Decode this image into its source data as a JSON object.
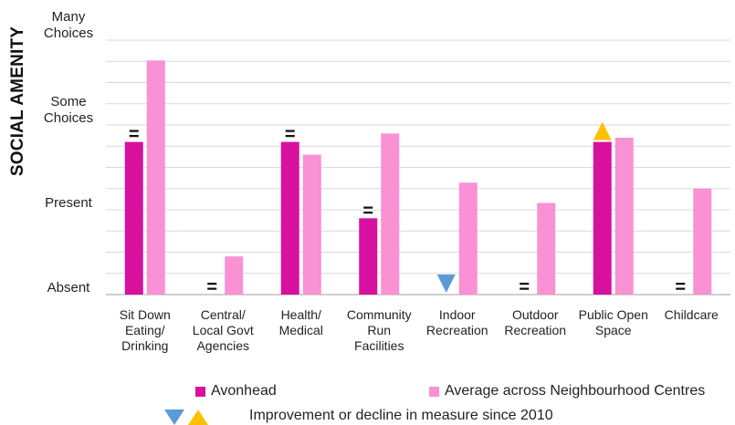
{
  "chart_data": {
    "type": "bar",
    "ylabel": "SOCIAL AMENITY",
    "y_levels": [
      {
        "label": "Absent",
        "value": 0
      },
      {
        "label": "Present",
        "value": 1
      },
      {
        "label": "Some\nChoices",
        "value": 2
      },
      {
        "label": "Many\nChoices",
        "value": 3
      }
    ],
    "ylim": [
      0,
      3
    ],
    "grid": true,
    "categories": [
      "Sit Down\nEating/\nDrinking",
      "Central/\nLocal Govt\nAgencies",
      "Health/\nMedical",
      "Community\nRun\nFacilities",
      "Indoor\nRecreation",
      "Outdoor\nRecreation",
      "Public Open\nSpace",
      "Childcare"
    ],
    "series": [
      {
        "name": "Avonhead",
        "color": "#d7119e",
        "values": [
          1.8,
          0,
          1.8,
          0.9,
          0,
          0,
          1.8,
          0
        ]
      },
      {
        "name": "Average across Neighbourhood Centres",
        "color": "#f991d4",
        "values": [
          2.76,
          0.45,
          1.65,
          1.9,
          1.32,
          1.08,
          1.85,
          1.25
        ]
      }
    ],
    "change_markers": [
      {
        "category": "Sit Down\nEating/\nDrinking",
        "marker": "="
      },
      {
        "category": "Central/\nLocal Govt\nAgencies",
        "marker": "="
      },
      {
        "category": "Health/\nMedical",
        "marker": "="
      },
      {
        "category": "Community\nRun\nFacilities",
        "marker": "="
      },
      {
        "category": "Indoor\nRecreation",
        "marker": "decline"
      },
      {
        "category": "Outdoor\nRecreation",
        "marker": "="
      },
      {
        "category": "Public Open\nSpace",
        "marker": "improvement"
      },
      {
        "category": "Childcare",
        "marker": "="
      }
    ],
    "marker_colors": {
      "decline": "#5b9bd5",
      "improvement": "#ffc000"
    }
  },
  "legend": {
    "series_1": "Avonhead",
    "series_2": "Average across Neighbourhood Centres",
    "markers_label": "Improvement or decline in measure since 2010"
  }
}
